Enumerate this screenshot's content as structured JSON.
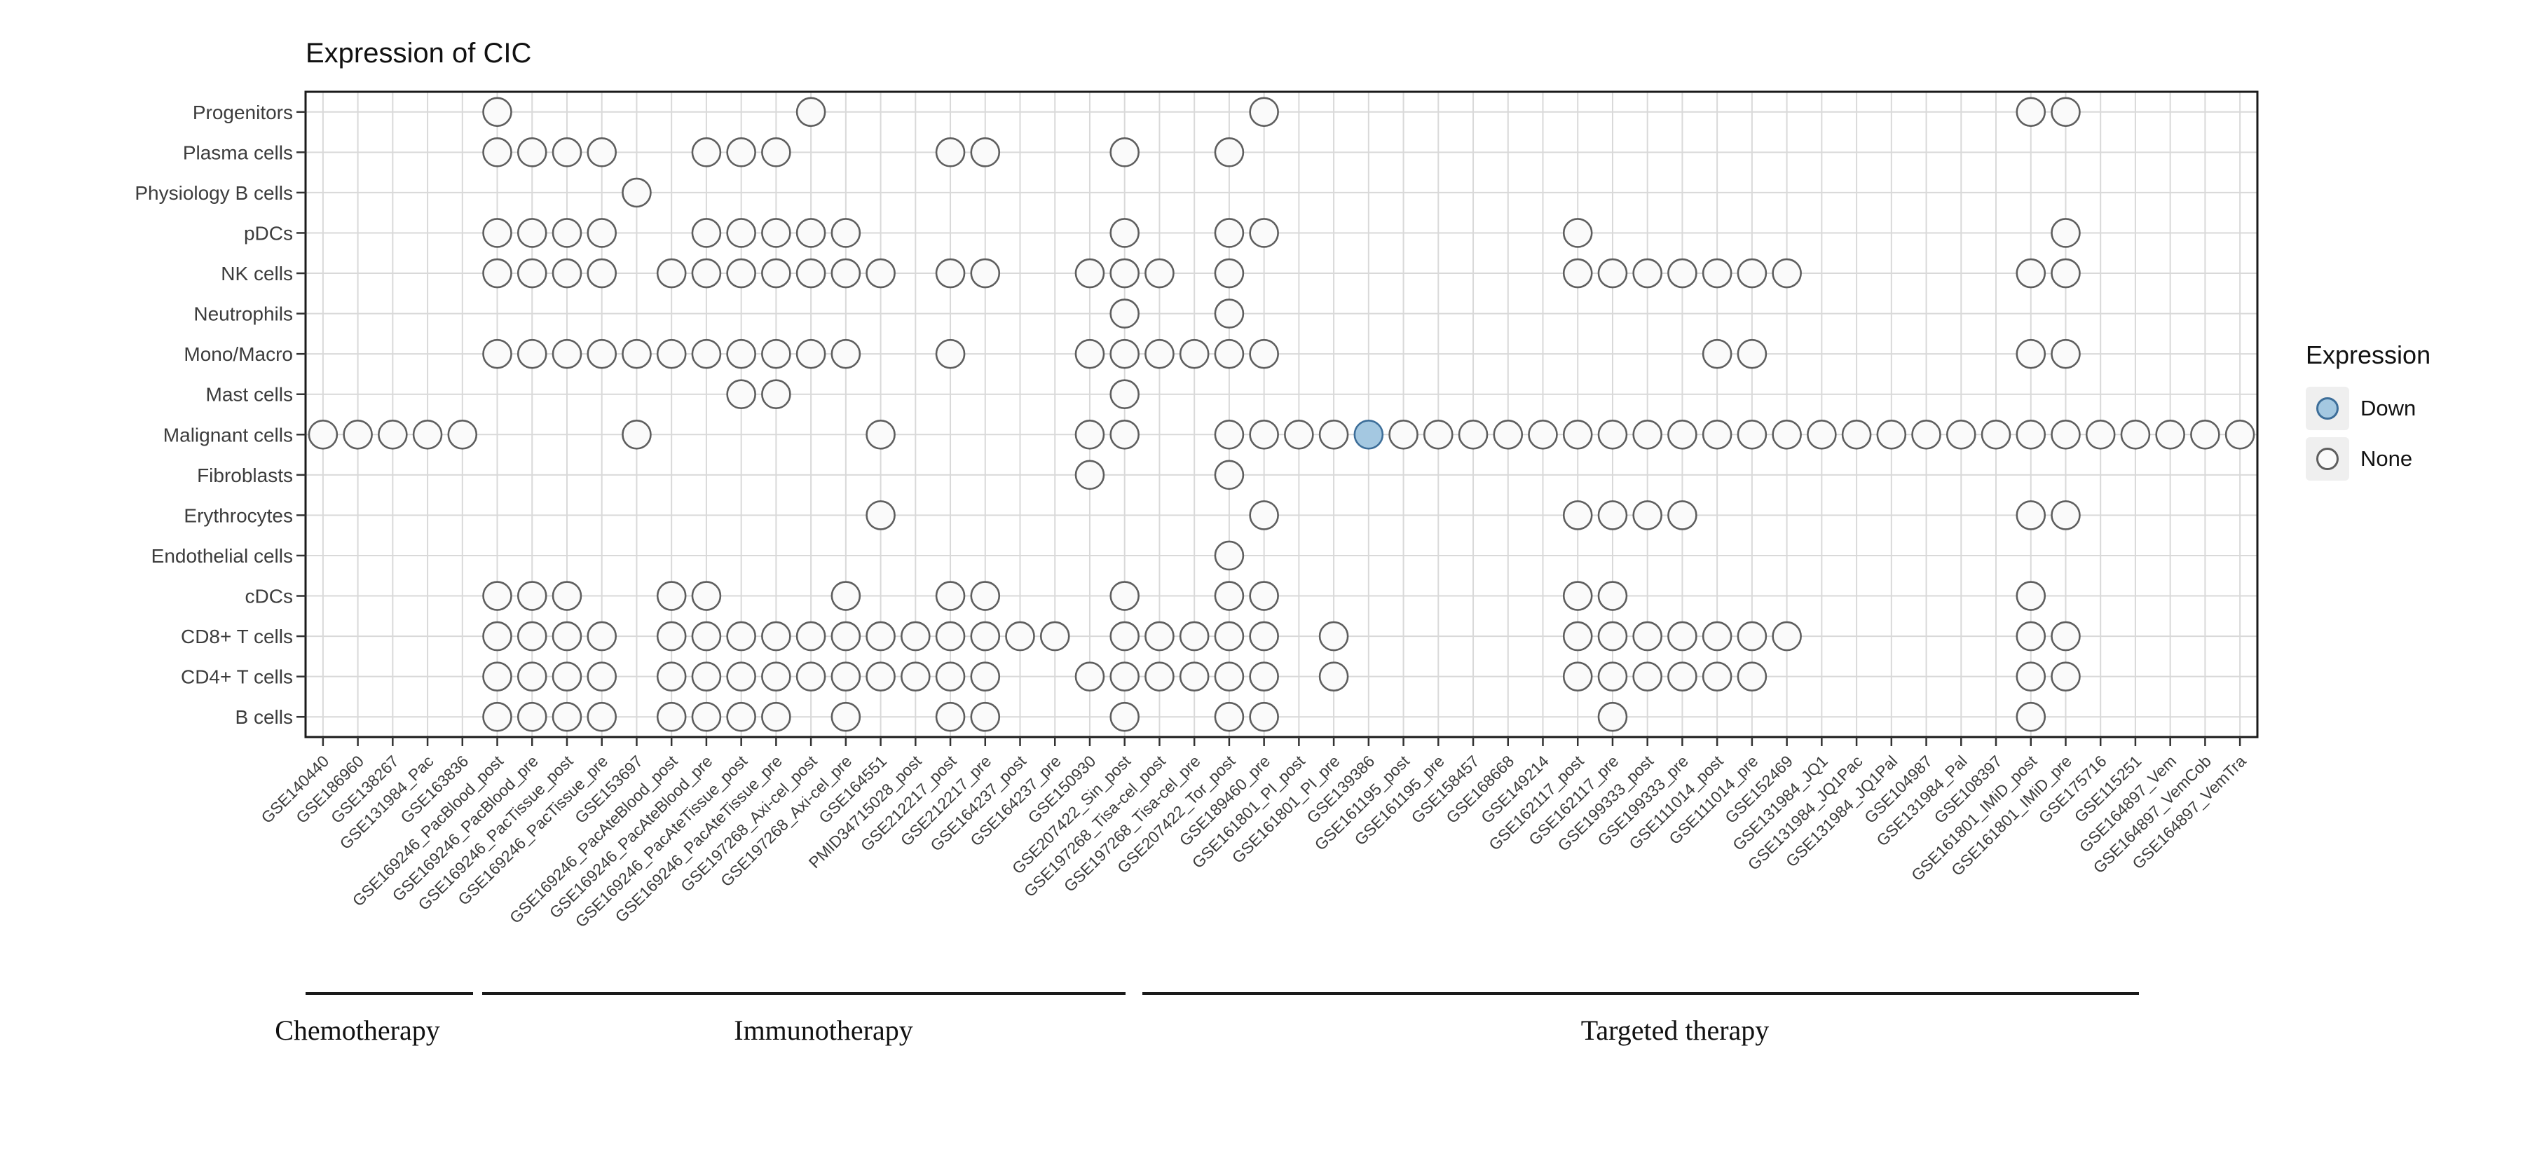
{
  "chart_data": {
    "type": "dotplot",
    "title": "Expression of CIC",
    "rows": [
      "Progenitors",
      "Plasma cells",
      "Physiology B cells",
      "pDCs",
      "NK cells",
      "Neutrophils",
      "Mono/Macro",
      "Mast cells",
      "Malignant cells",
      "Fibroblasts",
      "Erythrocytes",
      "Endothelial cells",
      "cDCs",
      "CD8+ T cells",
      "CD4+ T cells",
      "B cells"
    ],
    "columns": [
      "GSE140440",
      "GSE186960",
      "GSE138267",
      "GSE131984_Pac",
      "GSE163836",
      "GSE169246_PacBlood_post",
      "GSE169246_PacBlood_pre",
      "GSE169246_PacTissue_post",
      "GSE169246_PacTissue_pre",
      "GSE153697",
      "GSE169246_PacAteBlood_post",
      "GSE169246_PacAteBlood_pre",
      "GSE169246_PacAteTissue_post",
      "GSE169246_PacAteTissue_pre",
      "GSE197268_Axi-cel_post",
      "GSE197268_Axi-cel_pre",
      "GSE164551",
      "PMID34715028_post",
      "GSE212217_post",
      "GSE212217_pre",
      "GSE164237_post",
      "GSE164237_pre",
      "GSE150930",
      "GSE207422_Sin_post",
      "GSE197268_Tisa-cel_post",
      "GSE197268_Tisa-cel_pre",
      "GSE207422_Tor_post",
      "GSE189460_pre",
      "GSE161801_PI_post",
      "GSE161801_PI_pre",
      "GSE139386",
      "GSE161195_post",
      "GSE161195_pre",
      "GSE158457",
      "GSE168668",
      "GSE149214",
      "GSE162117_post",
      "GSE162117_pre",
      "GSE199333_post",
      "GSE199333_pre",
      "GSE111014_post",
      "GSE111014_pre",
      "GSE152469",
      "GSE131984_JQ1",
      "GSE131984_JQ1Pac",
      "GSE131984_JQ1Pal",
      "GSE104987",
      "GSE131984_Pal",
      "GSE108397",
      "GSE161801_IMiD_post",
      "GSE161801_IMiD_pre",
      "GSE175716",
      "GSE115251",
      "GSE164897_Vem",
      "GSE164897_VemCob",
      "GSE164897_VemTra"
    ],
    "presence": {
      "Progenitors": [
        5,
        14,
        27,
        49,
        50
      ],
      "Plasma cells": [
        5,
        6,
        7,
        8,
        11,
        12,
        13,
        18,
        19,
        23,
        26
      ],
      "Physiology B cells": [
        9
      ],
      "pDCs": [
        5,
        6,
        7,
        8,
        11,
        12,
        13,
        14,
        15,
        23,
        26,
        27,
        36,
        50
      ],
      "NK cells": [
        5,
        6,
        7,
        8,
        10,
        11,
        12,
        13,
        14,
        15,
        16,
        18,
        19,
        22,
        23,
        24,
        26,
        36,
        37,
        38,
        39,
        40,
        41,
        42,
        49,
        50
      ],
      "Neutrophils": [
        23,
        26
      ],
      "Mono/Macro": [
        5,
        6,
        7,
        8,
        9,
        10,
        11,
        12,
        13,
        14,
        15,
        18,
        22,
        23,
        24,
        25,
        26,
        27,
        40,
        41,
        49,
        50
      ],
      "Mast cells": [
        12,
        13,
        23
      ],
      "Malignant cells": [
        0,
        1,
        2,
        3,
        4,
        9,
        16,
        22,
        23,
        26,
        27,
        28,
        29,
        30,
        31,
        32,
        33,
        34,
        35,
        36,
        37,
        38,
        39,
        40,
        41,
        42,
        43,
        44,
        45,
        46,
        47,
        48,
        49,
        50,
        51,
        52,
        53,
        54,
        55
      ],
      "Fibroblasts": [
        22,
        26
      ],
      "Erythrocytes": [
        16,
        27,
        36,
        37,
        38,
        39,
        49,
        50
      ],
      "Endothelial cells": [
        26
      ],
      "cDCs": [
        5,
        6,
        7,
        10,
        11,
        15,
        18,
        19,
        23,
        26,
        27,
        36,
        37,
        49
      ],
      "CD8+ T cells": [
        5,
        6,
        7,
        8,
        10,
        11,
        12,
        13,
        14,
        15,
        16,
        17,
        18,
        19,
        20,
        21,
        23,
        24,
        25,
        26,
        27,
        29,
        36,
        37,
        38,
        39,
        40,
        41,
        42,
        49,
        50
      ],
      "CD4+ T cells": [
        5,
        6,
        7,
        8,
        10,
        11,
        12,
        13,
        14,
        15,
        16,
        17,
        18,
        19,
        22,
        23,
        24,
        25,
        26,
        27,
        29,
        36,
        37,
        38,
        39,
        40,
        41,
        49,
        50
      ],
      "B cells": [
        5,
        6,
        7,
        8,
        10,
        11,
        12,
        13,
        15,
        18,
        19,
        23,
        26,
        27,
        37,
        49
      ]
    },
    "down_cells": [
      {
        "row": "Malignant cells",
        "column": "GSE139386"
      }
    ],
    "groups": [
      {
        "label": "Chemotherapy",
        "from": "GSE140440",
        "to": "GSE163836"
      },
      {
        "label": "Immunotherapy",
        "from": "GSE169246_PacBlood_post",
        "to": "GSE207422_Tor_post"
      },
      {
        "label": "Targeted therapy",
        "from": "GSE189460_pre",
        "to": "GSE164897_VemTra"
      }
    ],
    "legend": {
      "title": "Expression",
      "items": [
        {
          "label": "Down",
          "fill": "#a4c8e1",
          "stroke": "#3d6e99"
        },
        {
          "label": "None",
          "fill": "#fafafa",
          "stroke": "#5e5e5e"
        }
      ]
    },
    "colors": {
      "grid": "#d9d9d9",
      "border": "#1a1a1a",
      "none_fill": "#fafafa",
      "none_stroke": "#5e5e5e",
      "down_fill": "#a4c8e1",
      "down_stroke": "#3d6e99"
    },
    "layout_hints": {
      "grid": "on",
      "legend_position": "right",
      "x_labels_rotation_deg": 45
    }
  }
}
